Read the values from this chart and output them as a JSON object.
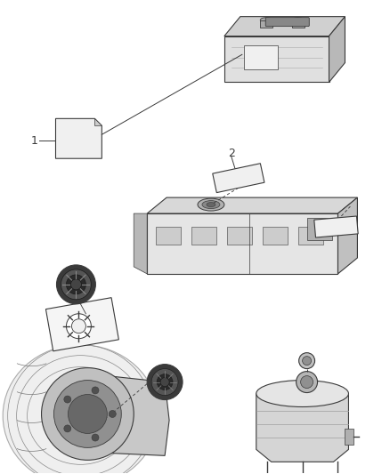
{
  "bg_color": "#ffffff",
  "line_color": "#3a3a3a",
  "fig_width": 4.38,
  "fig_height": 5.33,
  "dpi": 100,
  "note1": "1",
  "note2": "2",
  "gray_light": "#e8e8e8",
  "gray_mid": "#c0c0c0",
  "gray_dark": "#888888",
  "gray_vdark": "#444444"
}
